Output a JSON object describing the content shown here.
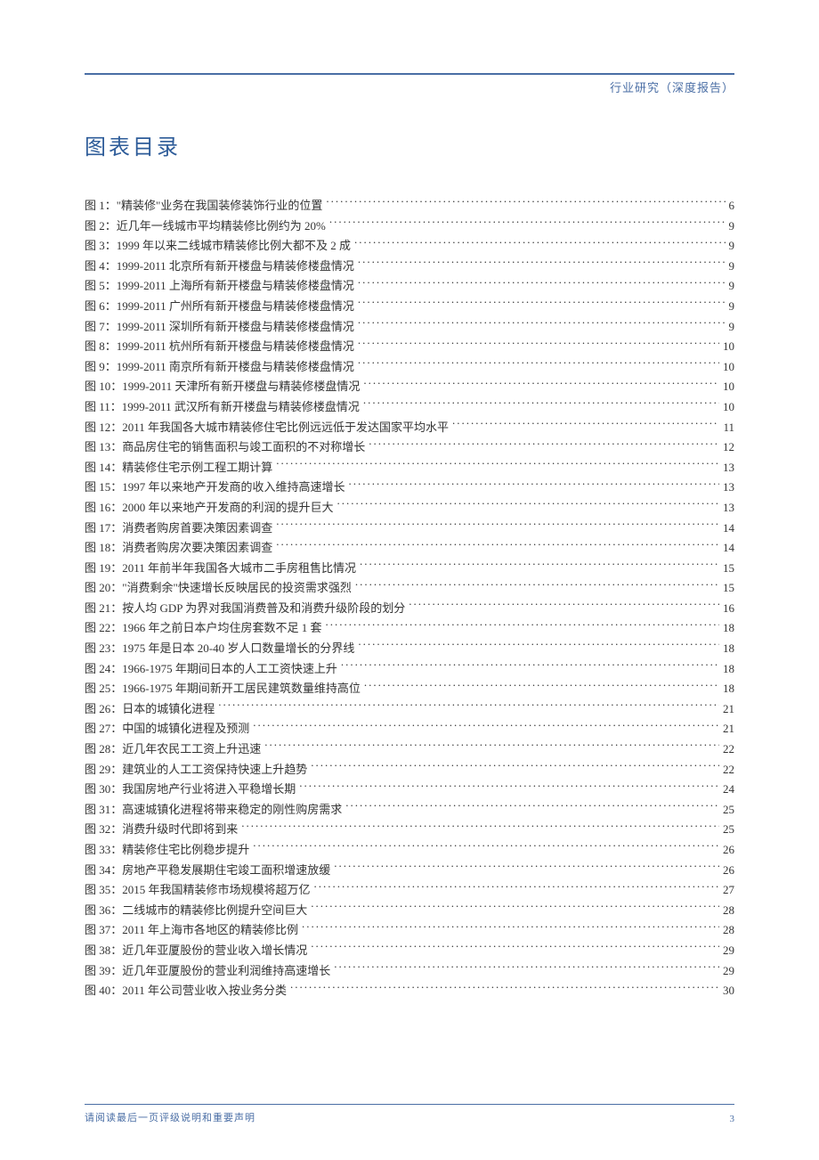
{
  "header_label": "行业研究（深度报告）",
  "section_title": "图表目录",
  "entries": [
    {
      "label": "图 1：\"精装修\"业务在我国装修装饰行业的位置 ",
      "page": " 6"
    },
    {
      "label": "图 2：近几年一线城市平均精装修比例约为 20%",
      "page": " 9"
    },
    {
      "label": "图 3：1999 年以来二线城市精装修比例大都不及 2 成 ",
      "page": " 9"
    },
    {
      "label": "图 4：1999-2011 北京所有新开楼盘与精装修楼盘情况 ",
      "page": " 9"
    },
    {
      "label": "图 5：1999-2011 上海所有新开楼盘与精装修楼盘情况 ",
      "page": " 9"
    },
    {
      "label": "图 6：1999-2011 广州所有新开楼盘与精装修楼盘情况 ",
      "page": " 9"
    },
    {
      "label": "图 7：1999-2011 深圳所有新开楼盘与精装修楼盘情况 ",
      "page": " 9"
    },
    {
      "label": "图 8：1999-2011 杭州所有新开楼盘与精装修楼盘情况 ",
      "page": " 10"
    },
    {
      "label": "图 9：1999-2011 南京所有新开楼盘与精装修楼盘情况 ",
      "page": " 10"
    },
    {
      "label": "图 10：1999-2011 天津所有新开楼盘与精装修楼盘情况 ",
      "page": " 10"
    },
    {
      "label": "图 11：1999-2011 武汉所有新开楼盘与精装修楼盘情况 ",
      "page": " 10"
    },
    {
      "label": "图 12：2011 年我国各大城市精装修住宅比例远远低于发达国家平均水平 ",
      "page": " 11"
    },
    {
      "label": "图 13：商品房住宅的销售面积与竣工面积的不对称增长",
      "page": " 12"
    },
    {
      "label": "图 14：精装修住宅示例工程工期计算",
      "page": " 13"
    },
    {
      "label": "图 15：1997 年以来地产开发商的收入维持高速增长 ",
      "page": " 13"
    },
    {
      "label": "图 16：2000 年以来地产开发商的利润的提升巨大 ",
      "page": " 13"
    },
    {
      "label": "图 17：消费者购房首要决策因素调查",
      "page": " 14"
    },
    {
      "label": "图 18：消费者购房次要决策因素调查",
      "page": " 14"
    },
    {
      "label": "图 19：2011 年前半年我国各大城市二手房租售比情况 ",
      "page": " 15"
    },
    {
      "label": "图 20：\"消费剩余\"快速增长反映居民的投资需求强烈",
      "page": " 15"
    },
    {
      "label": "图 21：按人均 GDP 为界对我国消费普及和消费升级阶段的划分",
      "page": " 16"
    },
    {
      "label": "图 22：1966 年之前日本户均住房套数不足 1 套 ",
      "page": " 18"
    },
    {
      "label": "图 23：1975 年是日本 20-40 岁人口数量增长的分界线",
      "page": " 18"
    },
    {
      "label": "图 24：1966-1975 年期间日本的人工工资快速上升 ",
      "page": " 18"
    },
    {
      "label": "图 25：1966-1975 年期间新开工居民建筑数量维持高位",
      "page": " 18"
    },
    {
      "label": "图 26：日本的城镇化进程 ",
      "page": " 21"
    },
    {
      "label": "图 27：中国的城镇化进程及预测 ",
      "page": " 21"
    },
    {
      "label": "图 28：近几年农民工工资上升迅速 ",
      "page": " 22"
    },
    {
      "label": "图 29：建筑业的人工工资保持快速上升趋势 ",
      "page": " 22"
    },
    {
      "label": "图 30：我国房地产行业将进入平稳增长期",
      "page": " 24"
    },
    {
      "label": "图 31：高速城镇化进程将带来稳定的刚性购房需求 ",
      "page": " 25"
    },
    {
      "label": "图 32：消费升级时代即将到来",
      "page": " 25"
    },
    {
      "label": "图 33：精装修住宅比例稳步提升 ",
      "page": " 26"
    },
    {
      "label": "图 34：房地产平稳发展期住宅竣工面积增速放缓",
      "page": " 26"
    },
    {
      "label": "图 35：2015 年我国精装修市场规模将超万亿 ",
      "page": " 27"
    },
    {
      "label": "图 36：二线城市的精装修比例提升空间巨大 ",
      "page": " 28"
    },
    {
      "label": "图 37：2011 年上海市各地区的精装修比例 ",
      "page": " 28"
    },
    {
      "label": "图 38：近几年亚厦股份的营业收入增长情况 ",
      "page": " 29"
    },
    {
      "label": "图 39：近几年亚厦股份的营业利润维持高速增长",
      "page": " 29"
    },
    {
      "label": "图 40：2011 年公司营业收入按业务分类",
      "page": " 30"
    }
  ],
  "footer_text": "请阅读最后一页评级说明和重要声明",
  "page_number": "3",
  "colors": {
    "primary": "#4a6ea5",
    "title": "#2e5c99",
    "text": "#333333",
    "background": "#ffffff"
  },
  "typography": {
    "body_size": 13,
    "title_size": 24,
    "footer_size": 11,
    "line_height": 22.6,
    "font_family": "SimSun"
  }
}
